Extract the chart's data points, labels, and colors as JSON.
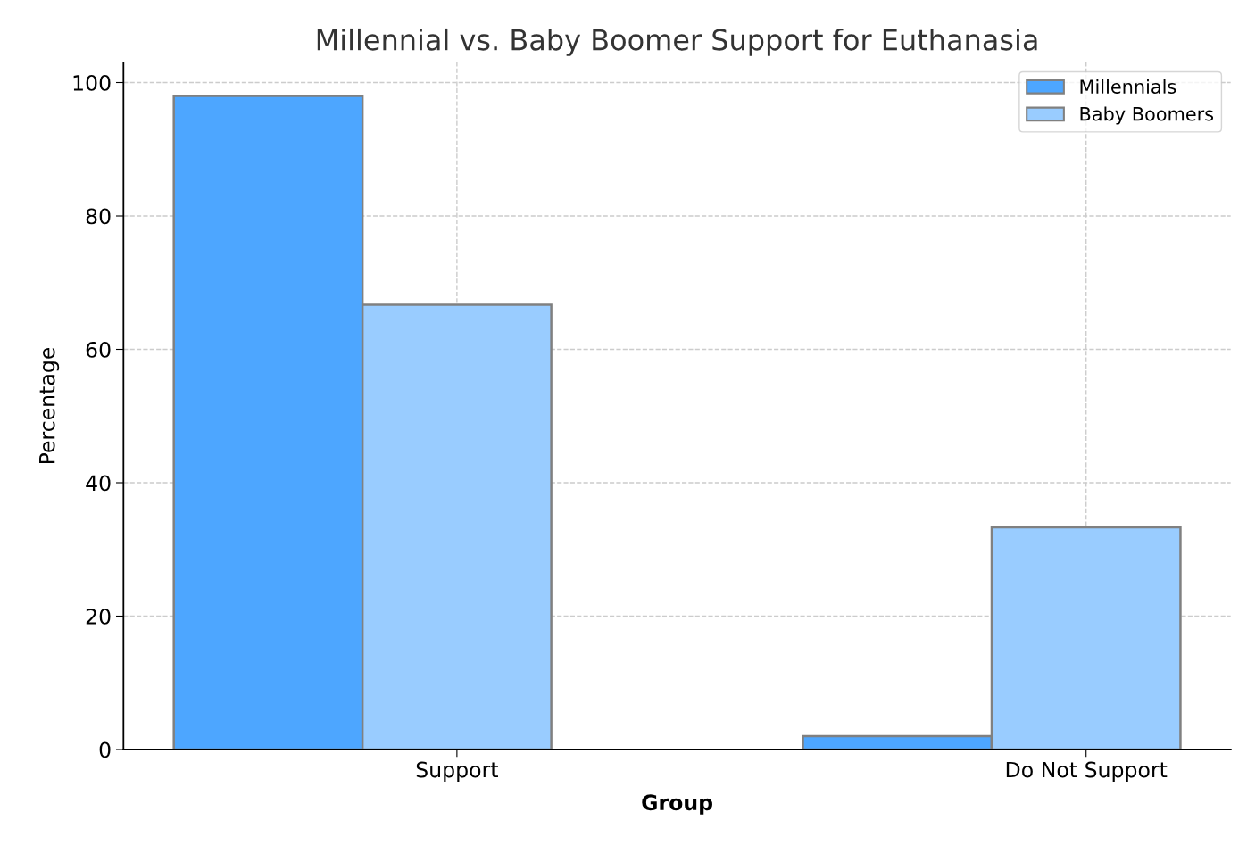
{
  "chart_data": {
    "type": "bar",
    "title": "Millennial vs. Baby Boomer Support for Euthanasia",
    "xlabel": "Group",
    "ylabel": "Percentage",
    "categories": [
      "Support",
      "Do Not Support"
    ],
    "series": [
      {
        "name": "Millennials",
        "color": "#4da6ff",
        "values": [
          98,
          2
        ]
      },
      {
        "name": "Baby Boomers",
        "color": "#99ccff",
        "values": [
          66.7,
          33.3
        ]
      }
    ],
    "ylim": [
      0,
      103
    ],
    "yticks": [
      0,
      20,
      40,
      60,
      80,
      100
    ],
    "grid": true,
    "legend": "top right"
  }
}
